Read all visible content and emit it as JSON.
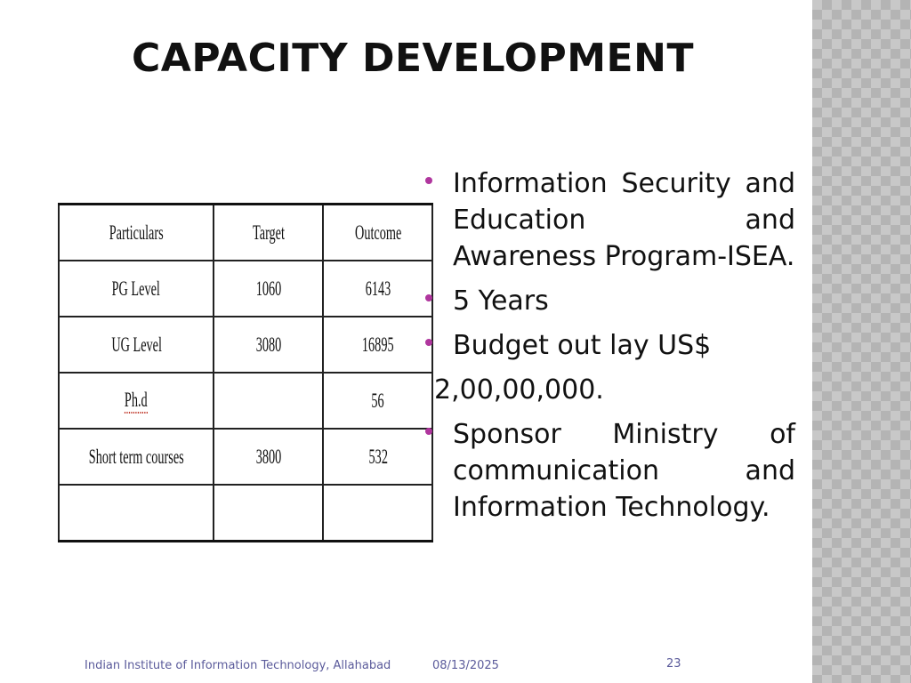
{
  "slide": {
    "title": "CAPACITY DEVELOPMENT"
  },
  "table": {
    "headers": [
      "Particulars",
      "Target",
      "Outcome"
    ],
    "rows": [
      [
        "PG Level",
        "1060",
        "6143"
      ],
      [
        "UG Level",
        "3080",
        "16895"
      ],
      [
        "Ph.d",
        "",
        "56"
      ],
      [
        "Short term courses",
        "3800",
        "532"
      ],
      [
        "",
        "",
        ""
      ]
    ]
  },
  "bullets": {
    "b1": "Information Security and Education and Awareness Program-ISEA.",
    "b2": "5 Years",
    "b3": "Budget out lay US$",
    "b3_cont": "2,00,00,000.",
    "b4": "Sponsor Ministry of communication and Information Technology."
  },
  "footer": {
    "institute": "Indian Institute of Information Technology, Allahabad",
    "date": "08/13/2025",
    "page": "23"
  },
  "colors": {
    "bullet": "#b0369e",
    "footer_text": "#5b5b9b"
  }
}
